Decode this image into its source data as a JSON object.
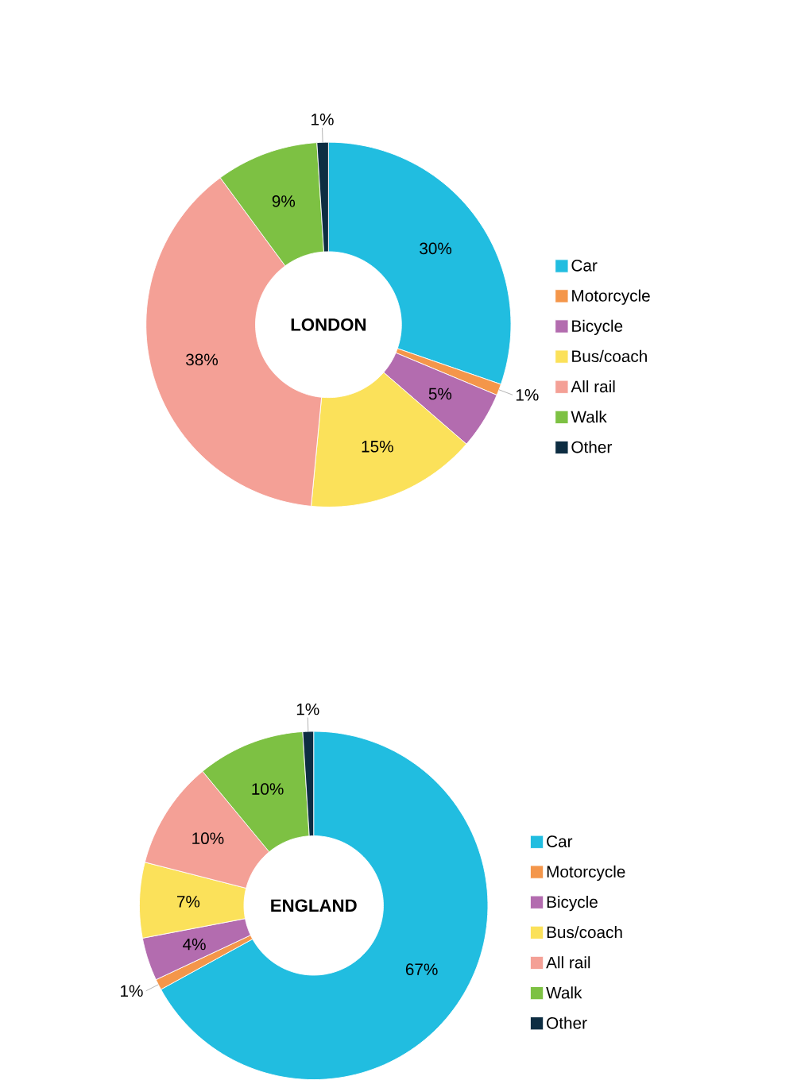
{
  "chart_data": [
    {
      "type": "donut",
      "title": "LONDON",
      "categories": [
        "Car",
        "Motorcycle",
        "Bicycle",
        "Bus/coach",
        "All rail",
        "Walk",
        "Other"
      ],
      "values": [
        30,
        1,
        5,
        15,
        38,
        9,
        1
      ],
      "value_labels": [
        "30%",
        "1%",
        "5%",
        "15%",
        "38%",
        "9%",
        "1%"
      ],
      "colors": [
        "#21bde0",
        "#f4964a",
        "#b36caf",
        "#fbe15a",
        "#f4a096",
        "#7dc143",
        "#0d2d42"
      ],
      "legend": "right"
    },
    {
      "type": "donut",
      "title": "ENGLAND",
      "categories": [
        "Car",
        "Motorcycle",
        "Bicycle",
        "Bus/coach",
        "All rail",
        "Walk",
        "Other"
      ],
      "values": [
        67,
        1,
        4,
        7,
        10,
        10,
        1
      ],
      "value_labels": [
        "67%",
        "1%",
        "4%",
        "7%",
        "10%",
        "10%",
        "1%"
      ],
      "colors": [
        "#21bde0",
        "#f4964a",
        "#b36caf",
        "#fbe15a",
        "#f4a096",
        "#7dc143",
        "#0d2d42"
      ],
      "legend": "right"
    }
  ]
}
